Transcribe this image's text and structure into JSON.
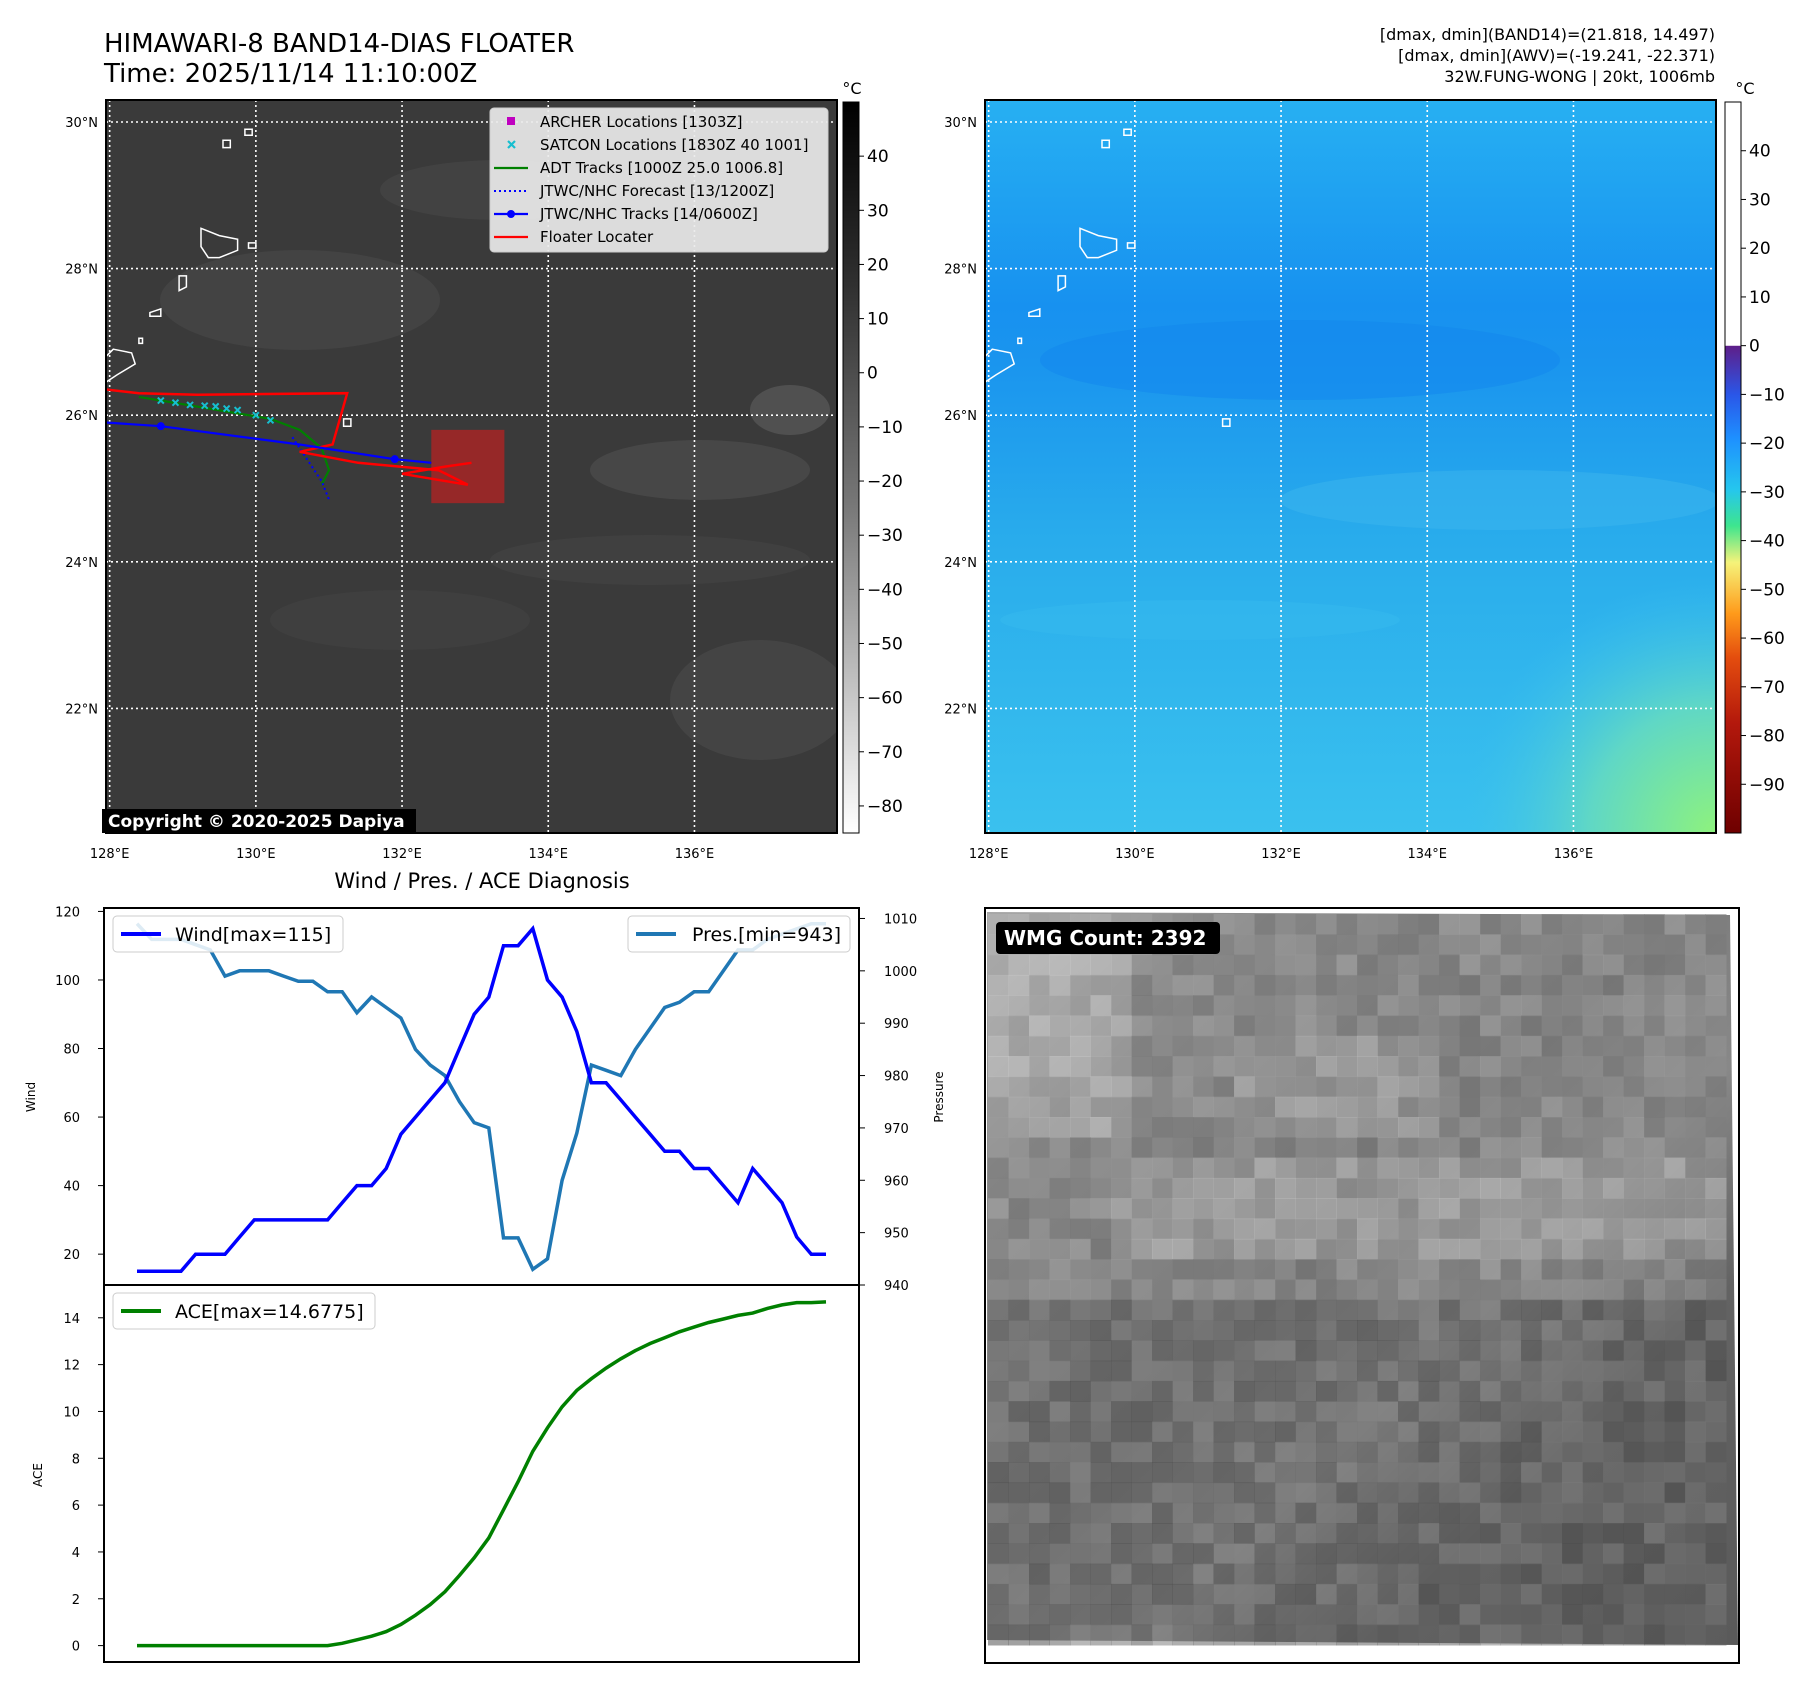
{
  "header": {
    "title_line1": "HIMAWARI-8 BAND14-DIAS FLOATER",
    "title_line2": "Time: 2025/11/14 11:10:00Z",
    "info_line1": "[dmax, dmin](BAND14)=(21.818, 14.497)",
    "info_line2": "[dmax, dmin](AWV)=(-19.241, -22.371)",
    "info_line3": "32W.FUNG-WONG | 20kt, 1006mb"
  },
  "colors": {
    "wind": "#0000ff",
    "pressure": "#1f77b4",
    "ace": "#008000",
    "adt": "#008000",
    "satcon": "#17becf",
    "archer": "#bf00bf",
    "floater": "#ff0000",
    "jtwc": "#0000ff",
    "ir_background": "#3a3a3a",
    "wv_background": "#2aa8ee"
  },
  "map": {
    "lon_ticks": [
      "128°E",
      "130°E",
      "132°E",
      "134°E",
      "136°E"
    ],
    "lon_values": [
      128,
      130,
      132,
      134,
      136
    ],
    "lat_ticks": [
      "30°N",
      "28°N",
      "26°N",
      "24°N",
      "22°N"
    ],
    "lat_values": [
      30,
      28,
      26,
      24,
      22
    ],
    "extent": {
      "lon_min": 127.95,
      "lon_max": 137.95,
      "lat_min": 20.3,
      "lat_max": 30.3
    },
    "copyright": "Copyright © 2020-2025 Dapiya",
    "legend": [
      {
        "label": "ARCHER Locations [1303Z]",
        "marker": "square",
        "color": "#bf00bf"
      },
      {
        "label": "SATCON Locations [1830Z 40 1001]",
        "marker": "x",
        "color": "#17becf"
      },
      {
        "label": "ADT Tracks [1000Z 25.0 1006.8]",
        "marker": "line",
        "color": "#008000"
      },
      {
        "label": "JTWC/NHC Forecast [13/1200Z]",
        "marker": "dotted",
        "color": "#0000ff"
      },
      {
        "label": "JTWC/NHC Tracks [14/0600Z]",
        "marker": "line-dot",
        "color": "#0000ff"
      },
      {
        "label": "Floater Locater",
        "marker": "line",
        "color": "#ff0000"
      }
    ],
    "jtwc_track": [
      [
        127.95,
        25.9
      ],
      [
        128.7,
        25.85
      ],
      [
        130.6,
        25.6
      ],
      [
        131.9,
        25.4
      ],
      [
        132.4,
        25.35
      ]
    ],
    "jtwc_forecast": [
      [
        130.5,
        25.7
      ],
      [
        130.7,
        25.4
      ],
      [
        130.9,
        25.1
      ],
      [
        131.0,
        24.85
      ]
    ],
    "adt_track": [
      [
        128.4,
        26.25
      ],
      [
        129.0,
        26.15
      ],
      [
        129.6,
        26.05
      ],
      [
        130.2,
        25.95
      ],
      [
        130.6,
        25.8
      ],
      [
        130.9,
        25.55
      ],
      [
        131.0,
        25.25
      ],
      [
        130.9,
        25.05
      ]
    ],
    "satcon_points": [
      [
        128.7,
        26.2
      ],
      [
        128.9,
        26.17
      ],
      [
        129.1,
        26.14
      ],
      [
        129.3,
        26.13
      ],
      [
        129.45,
        26.12
      ],
      [
        129.6,
        26.09
      ],
      [
        129.75,
        26.07
      ],
      [
        130.0,
        26.0
      ],
      [
        130.2,
        25.93
      ]
    ],
    "floater_track": [
      [
        127.95,
        26.35
      ],
      [
        128.4,
        26.3
      ],
      [
        129.2,
        26.28
      ],
      [
        131.25,
        26.3
      ],
      [
        131.05,
        25.6
      ],
      [
        130.6,
        25.5
      ],
      [
        131.4,
        25.35
      ],
      [
        132.5,
        25.25
      ],
      [
        132.9,
        25.05
      ],
      [
        132.0,
        25.2
      ],
      [
        132.6,
        25.3
      ],
      [
        132.95,
        25.35
      ]
    ],
    "floater_box": {
      "lon_min": 132.4,
      "lon_max": 133.4,
      "lat_min": 24.8,
      "lat_max": 25.8
    },
    "islands": [
      {
        "name": "amami",
        "points": [
          [
            129.25,
            28.55
          ],
          [
            129.5,
            28.45
          ],
          [
            129.75,
            28.4
          ],
          [
            129.75,
            28.25
          ],
          [
            129.5,
            28.15
          ],
          [
            129.35,
            28.15
          ],
          [
            129.25,
            28.3
          ]
        ]
      },
      {
        "name": "tokunoshima",
        "points": [
          [
            128.95,
            27.9
          ],
          [
            129.05,
            27.9
          ],
          [
            129.05,
            27.75
          ],
          [
            128.95,
            27.7
          ]
        ]
      },
      {
        "name": "okinoerabu",
        "points": [
          [
            128.55,
            27.4
          ],
          [
            128.7,
            27.45
          ],
          [
            128.7,
            27.35
          ],
          [
            128.55,
            27.35
          ]
        ]
      },
      {
        "name": "yoron",
        "points": [
          [
            128.4,
            27.05
          ],
          [
            128.45,
            27.05
          ],
          [
            128.45,
            26.98
          ],
          [
            128.4,
            26.98
          ]
        ]
      },
      {
        "name": "okinawa",
        "points": [
          [
            128.05,
            26.9
          ],
          [
            128.3,
            26.85
          ],
          [
            128.35,
            26.7
          ],
          [
            128.1,
            26.55
          ],
          [
            127.95,
            26.45
          ],
          [
            127.95,
            26.8
          ]
        ]
      },
      {
        "name": "kikai",
        "points": [
          [
            129.9,
            28.35
          ],
          [
            130.0,
            28.35
          ],
          [
            130.0,
            28.28
          ],
          [
            129.9,
            28.28
          ]
        ]
      },
      {
        "name": "yokoate",
        "points": [
          [
            129.55,
            29.75
          ],
          [
            129.65,
            29.75
          ],
          [
            129.65,
            29.65
          ],
          [
            129.55,
            29.65
          ]
        ]
      },
      {
        "name": "tokara",
        "points": [
          [
            129.85,
            29.9
          ],
          [
            129.95,
            29.9
          ],
          [
            129.95,
            29.82
          ],
          [
            129.85,
            29.82
          ]
        ]
      },
      {
        "name": "daito",
        "points": [
          [
            131.2,
            25.95
          ],
          [
            131.3,
            25.95
          ],
          [
            131.3,
            25.85
          ],
          [
            131.2,
            25.85
          ]
        ]
      }
    ]
  },
  "colorbars": {
    "unit": "°C",
    "ir_ticks": [
      40,
      30,
      20,
      10,
      0,
      -10,
      -20,
      -30,
      -40,
      -50,
      -60,
      -70,
      -80
    ],
    "ir_range": [
      -85,
      50
    ],
    "wv_ticks": [
      40,
      30,
      20,
      10,
      0,
      -10,
      -20,
      -30,
      -40,
      -50,
      -60,
      -70,
      -80,
      -90
    ],
    "wv_range": [
      -100,
      50
    ]
  },
  "chart_data": [
    {
      "type": "line",
      "title": "Wind / Pres. / ACE Diagnosis",
      "ylabel": "Wind",
      "ylabel_right": "Pressure",
      "ylim": [
        11,
        121
      ],
      "ylim_right": [
        940,
        1012
      ],
      "yticks": [
        20,
        40,
        60,
        80,
        100,
        120
      ],
      "yticks_right": [
        940,
        950,
        960,
        970,
        980,
        990,
        1000,
        1010
      ],
      "x": [
        0,
        1,
        2,
        3,
        4,
        5,
        6,
        7,
        8,
        9,
        10,
        11,
        12,
        13,
        14,
        15,
        16,
        17,
        18,
        19,
        20,
        21,
        22,
        23,
        24,
        25,
        26,
        27,
        28,
        29,
        30,
        31,
        32,
        33,
        34,
        35,
        36,
        37,
        38,
        39,
        40,
        41,
        42,
        43,
        44,
        45,
        46,
        47
      ],
      "series": [
        {
          "name": "Wind[max=115]",
          "axis": "left",
          "values": [
            15,
            15,
            15,
            15,
            20,
            20,
            20,
            25,
            30,
            30,
            30,
            30,
            30,
            30,
            35,
            40,
            40,
            45,
            55,
            60,
            65,
            70,
            80,
            90,
            95,
            110,
            110,
            115,
            100,
            95,
            85,
            70,
            70,
            65,
            60,
            55,
            50,
            50,
            45,
            45,
            40,
            35,
            45,
            40,
            35,
            25,
            20,
            20
          ]
        },
        {
          "name": "Pres.[min=943]",
          "axis": "right",
          "values": [
            1009,
            1006,
            1006,
            1006,
            1005,
            1004,
            999,
            1000,
            1000,
            1000,
            999,
            998,
            998,
            996,
            996,
            992,
            995,
            993,
            991,
            985,
            982,
            980,
            975,
            971,
            970,
            949,
            949,
            943,
            945,
            960,
            969,
            982,
            981,
            980,
            985,
            989,
            993,
            994,
            996,
            996,
            1000,
            1004,
            1004,
            1006,
            1007,
            1008,
            1009,
            1009
          ]
        }
      ],
      "legend_left": "Wind[max=115]",
      "legend_right": "Pres.[min=943]"
    },
    {
      "type": "line",
      "ylabel": "ACE",
      "ylim": [
        -0.7,
        15.4
      ],
      "yticks": [
        0,
        2,
        4,
        6,
        8,
        10,
        12,
        14
      ],
      "x": [
        0,
        1,
        2,
        3,
        4,
        5,
        6,
        7,
        8,
        9,
        10,
        11,
        12,
        13,
        14,
        15,
        16,
        17,
        18,
        19,
        20,
        21,
        22,
        23,
        24,
        25,
        26,
        27,
        28,
        29,
        30,
        31,
        32,
        33,
        34,
        35,
        36,
        37,
        38,
        39,
        40,
        41,
        42,
        43,
        44,
        45,
        46,
        47
      ],
      "series": [
        {
          "name": "ACE[max=14.6775]",
          "values": [
            0,
            0,
            0,
            0,
            0,
            0,
            0,
            0,
            0,
            0,
            0,
            0,
            0,
            0,
            0.1,
            0.25,
            0.4,
            0.6,
            0.9,
            1.3,
            1.75,
            2.3,
            3.0,
            3.75,
            4.6,
            5.8,
            7.0,
            8.3,
            9.3,
            10.2,
            10.9,
            11.4,
            11.85,
            12.25,
            12.6,
            12.9,
            13.15,
            13.4,
            13.6,
            13.8,
            13.95,
            14.1,
            14.2,
            14.4,
            14.55,
            14.65,
            14.65,
            14.6775
          ]
        }
      ],
      "legend": "ACE[max=14.6775]"
    }
  ],
  "microwave": {
    "label": "WMG Count: 2392"
  }
}
